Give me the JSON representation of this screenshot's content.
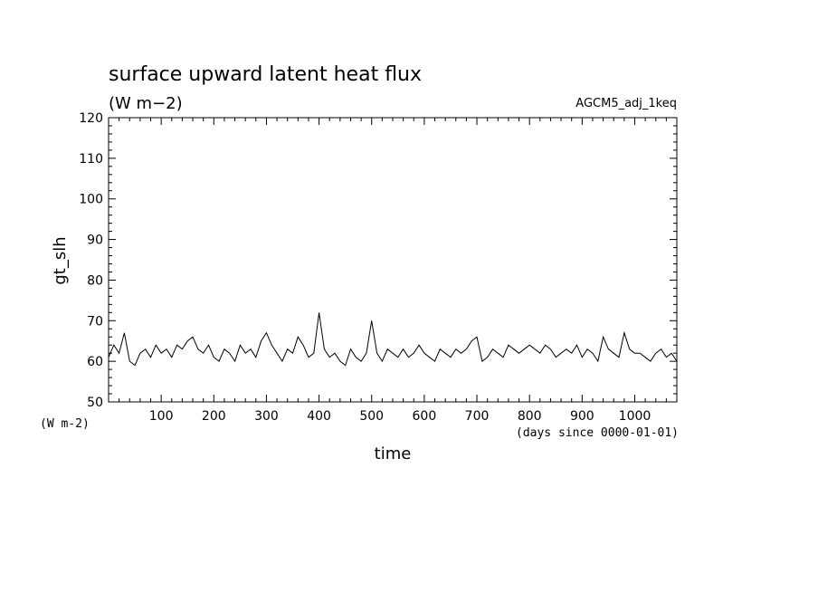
{
  "chart_data": {
    "type": "line",
    "title": "surface upward latent heat flux",
    "units": "(W m−2)",
    "run_label": "AGCM5_adj_1keq",
    "ylabel": "gt_slh",
    "y_units_label": "(W m-2)",
    "xlabel": "time",
    "x_units_label": "(days since 0000-01-01)",
    "xlim": [
      0,
      1080
    ],
    "ylim": [
      50,
      120
    ],
    "x_ticks": [
      100,
      200,
      300,
      400,
      500,
      600,
      700,
      800,
      900,
      1000
    ],
    "y_ticks": [
      50,
      60,
      70,
      80,
      90,
      100,
      110,
      120
    ],
    "grid": false,
    "series": [
      {
        "color": "#000000",
        "x": [
          0,
          10,
          20,
          30,
          40,
          50,
          60,
          70,
          80,
          90,
          100,
          110,
          120,
          130,
          140,
          150,
          160,
          170,
          180,
          190,
          200,
          210,
          220,
          230,
          240,
          250,
          260,
          270,
          280,
          290,
          300,
          310,
          320,
          330,
          340,
          350,
          360,
          370,
          380,
          390,
          400,
          410,
          420,
          430,
          440,
          450,
          460,
          470,
          480,
          490,
          500,
          510,
          520,
          530,
          540,
          550,
          560,
          570,
          580,
          590,
          600,
          610,
          620,
          630,
          640,
          650,
          660,
          670,
          680,
          690,
          700,
          710,
          720,
          730,
          740,
          750,
          760,
          770,
          780,
          790,
          800,
          810,
          820,
          830,
          840,
          850,
          860,
          870,
          880,
          890,
          900,
          910,
          920,
          930,
          940,
          950,
          960,
          970,
          980,
          990,
          1000,
          1010,
          1020,
          1030,
          1040,
          1050,
          1060,
          1070,
          1080
        ],
        "values": [
          61,
          64,
          62,
          67,
          60,
          59,
          62,
          63,
          61,
          64,
          62,
          63,
          61,
          64,
          63,
          65,
          66,
          63,
          62,
          64,
          61,
          60,
          63,
          62,
          60,
          64,
          62,
          63,
          61,
          65,
          67,
          64,
          62,
          60,
          63,
          62,
          66,
          64,
          61,
          62,
          72,
          63,
          61,
          62,
          60,
          59,
          63,
          61,
          60,
          62,
          70,
          62,
          60,
          63,
          62,
          61,
          63,
          61,
          62,
          64,
          62,
          61,
          60,
          63,
          62,
          61,
          63,
          62,
          63,
          65,
          66,
          60,
          61,
          63,
          62,
          61,
          64,
          63,
          62,
          63,
          64,
          63,
          62,
          64,
          63,
          61,
          62,
          63,
          62,
          64,
          61,
          63,
          62,
          60,
          66,
          63,
          62,
          61,
          67,
          63,
          62,
          62,
          61,
          60,
          62,
          63,
          61,
          62,
          60
        ]
      }
    ]
  }
}
